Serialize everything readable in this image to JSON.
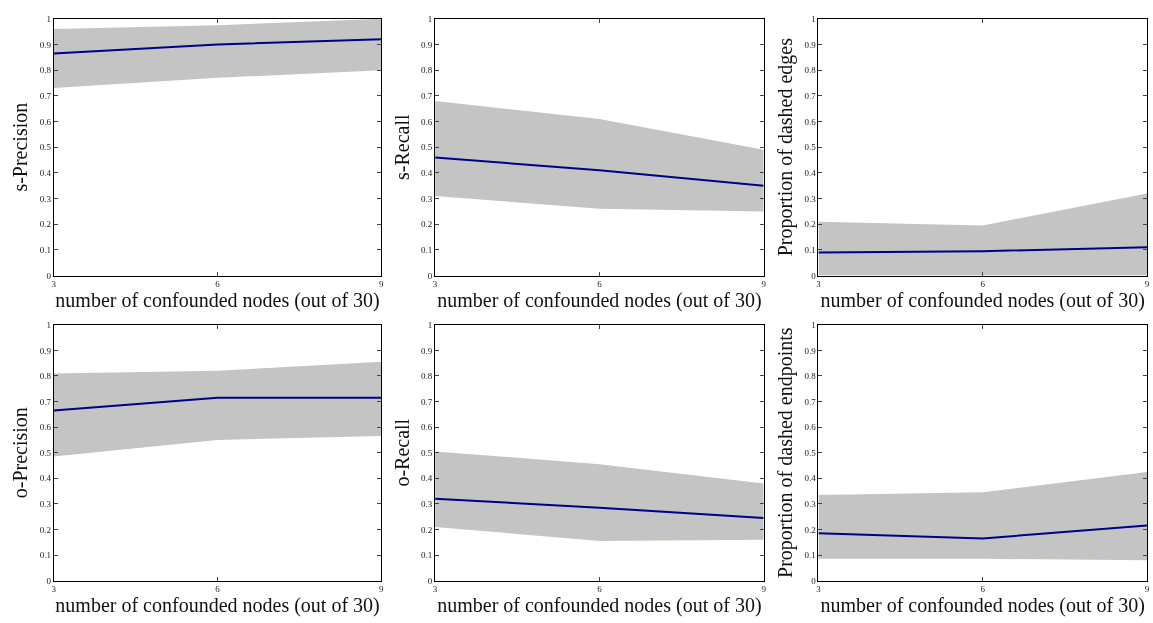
{
  "chart_data": [
    {
      "type": "line",
      "xlabel": "number of confounded nodes (out of 30)",
      "ylabel": "s-Precision",
      "x": [
        3,
        6,
        9
      ],
      "xlim": [
        3,
        9
      ],
      "xticks": [
        3,
        6,
        9
      ],
      "ylim": [
        0,
        1
      ],
      "yticks": [
        0,
        0.1,
        0.2,
        0.3,
        0.4,
        0.5,
        0.6,
        0.7,
        0.8,
        0.9,
        1
      ],
      "marker": "none",
      "line_style": "solid",
      "series": [
        {
          "color": "#00008b",
          "values": [
            0.865,
            0.9,
            0.92
          ],
          "lower": [
            0.73,
            0.77,
            0.8
          ],
          "upper": [
            0.96,
            0.975,
            1.0
          ]
        }
      ]
    },
    {
      "type": "line",
      "xlabel": "number of confounded nodes (out of 30)",
      "ylabel": "s-Recall",
      "x": [
        3,
        6,
        9
      ],
      "xlim": [
        3,
        9
      ],
      "xticks": [
        3,
        6,
        9
      ],
      "ylim": [
        0,
        1
      ],
      "yticks": [
        0,
        0.1,
        0.2,
        0.3,
        0.4,
        0.5,
        0.6,
        0.7,
        0.8,
        0.9,
        1
      ],
      "marker": "none",
      "line_style": "solid",
      "series": [
        {
          "color": "#00008b",
          "values": [
            0.46,
            0.41,
            0.35
          ],
          "lower": [
            0.31,
            0.26,
            0.25
          ],
          "upper": [
            0.68,
            0.61,
            0.49
          ]
        }
      ]
    },
    {
      "type": "line",
      "xlabel": "number of confounded nodes (out of 30)",
      "ylabel": "Proportion of dashed edges",
      "x": [
        3,
        6,
        9
      ],
      "xlim": [
        3,
        9
      ],
      "xticks": [
        3,
        6,
        9
      ],
      "ylim": [
        0,
        1
      ],
      "yticks": [
        0,
        0.1,
        0.2,
        0.3,
        0.4,
        0.5,
        0.6,
        0.7,
        0.8,
        0.9,
        1
      ],
      "marker": "none",
      "line_style": "solid",
      "series": [
        {
          "color": "#00008b",
          "values": [
            0.09,
            0.095,
            0.11
          ],
          "lower": [
            0,
            0,
            0
          ],
          "upper": [
            0.21,
            0.195,
            0.32
          ]
        }
      ]
    },
    {
      "type": "line",
      "xlabel": "number of confounded nodes (out of 30)",
      "ylabel": "o-Precision",
      "x": [
        3,
        6,
        9
      ],
      "xlim": [
        3,
        9
      ],
      "xticks": [
        3,
        6,
        9
      ],
      "ylim": [
        0,
        1
      ],
      "yticks": [
        0,
        0.1,
        0.2,
        0.3,
        0.4,
        0.5,
        0.6,
        0.7,
        0.8,
        0.9,
        1
      ],
      "marker": "none",
      "line_style": "solid",
      "series": [
        {
          "color": "#00008b",
          "values": [
            0.665,
            0.715,
            0.715
          ],
          "lower": [
            0.485,
            0.55,
            0.565
          ],
          "upper": [
            0.81,
            0.82,
            0.855
          ]
        }
      ]
    },
    {
      "type": "line",
      "xlabel": "number of confounded nodes (out of 30)",
      "ylabel": "o-Recall",
      "x": [
        3,
        6,
        9
      ],
      "xlim": [
        3,
        9
      ],
      "xticks": [
        3,
        6,
        9
      ],
      "ylim": [
        0,
        1
      ],
      "yticks": [
        0,
        0.1,
        0.2,
        0.3,
        0.4,
        0.5,
        0.6,
        0.7,
        0.8,
        0.9,
        1
      ],
      "marker": "none",
      "line_style": "solid",
      "series": [
        {
          "color": "#00008b",
          "values": [
            0.32,
            0.285,
            0.245
          ],
          "lower": [
            0.21,
            0.155,
            0.16
          ],
          "upper": [
            0.505,
            0.455,
            0.38
          ]
        }
      ]
    },
    {
      "type": "line",
      "xlabel": "number of confounded nodes (out of 30)",
      "ylabel": "Proportion of dashed endpoints",
      "x": [
        3,
        6,
        9
      ],
      "xlim": [
        3,
        9
      ],
      "xticks": [
        3,
        6,
        9
      ],
      "ylim": [
        0,
        1
      ],
      "yticks": [
        0,
        0.1,
        0.2,
        0.3,
        0.4,
        0.5,
        0.6,
        0.7,
        0.8,
        0.9,
        1
      ],
      "marker": "none",
      "line_style": "solid",
      "series": [
        {
          "color": "#00008b",
          "values": [
            0.185,
            0.165,
            0.215
          ],
          "lower": [
            0.085,
            0.085,
            0.08
          ],
          "upper": [
            0.335,
            0.345,
            0.425
          ]
        }
      ]
    }
  ]
}
